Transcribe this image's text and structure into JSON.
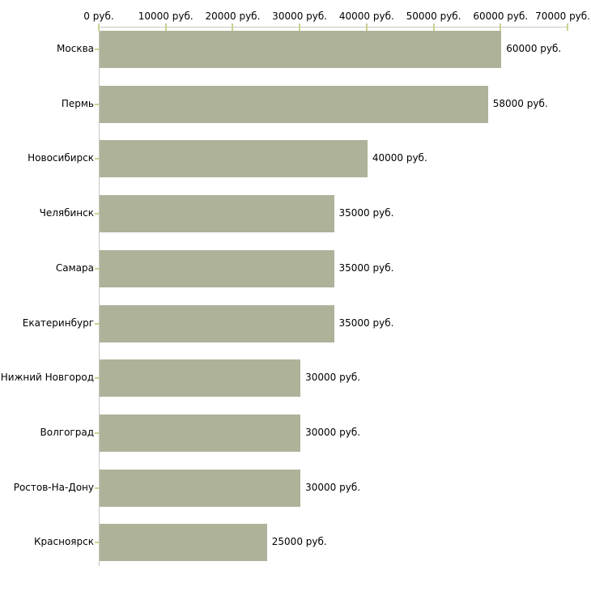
{
  "chart_data": {
    "type": "bar",
    "orientation": "horizontal",
    "title": "",
    "xlabel": "",
    "ylabel": "",
    "unit": "руб.",
    "xlim": [
      0,
      70000
    ],
    "grid": false,
    "legend": false,
    "categories": [
      "Москва",
      "Пермь",
      "Новосибирск",
      "Челябинск",
      "Самара",
      "Екатеринбург",
      "Нижний Новгород",
      "Волгоград",
      "Ростов-На-Дону",
      "Красноярск"
    ],
    "values": [
      60000,
      58000,
      40000,
      35000,
      35000,
      35000,
      30000,
      30000,
      30000,
      25000
    ],
    "value_labels": [
      "60000 руб.",
      "58000 руб.",
      "40000 руб.",
      "35000 руб.",
      "35000 руб.",
      "35000 руб.",
      "30000 руб.",
      "30000 руб.",
      "30000 руб.",
      "25000 руб."
    ],
    "x_ticks": [
      0,
      10000,
      20000,
      30000,
      40000,
      50000,
      60000,
      70000
    ],
    "x_tick_labels": [
      "0 руб.",
      "10000 руб.",
      "20000 руб.",
      "30000 руб.",
      "40000 руб.",
      "50000 руб.",
      "60000 руб.",
      "70000 руб."
    ],
    "colors": {
      "bar": "#aeb299",
      "axis": "#c6c6c2",
      "tick": "#ccd08e",
      "text": "#000000",
      "background": "#ffffff"
    }
  }
}
